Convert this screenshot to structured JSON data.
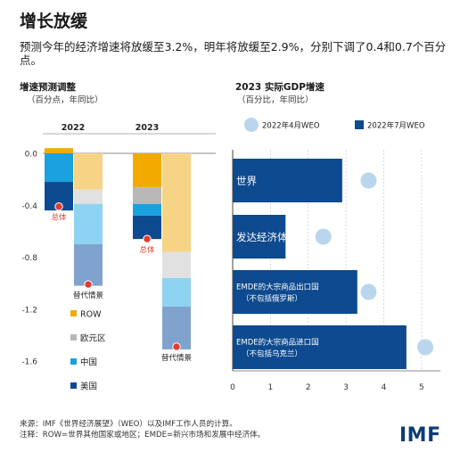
{
  "header": {
    "title": "增长放缓",
    "subtitle": "预测今年的经济增速将放缓至3.2%，明年将放缓至2.9%，分别下调了0.4和0.7个百分点。"
  },
  "left_panel": {
    "title": "增速预测调整",
    "subtitle": "（百分点，年同比）"
  },
  "right_panel": {
    "title": "2023 实际GDP增速",
    "subtitle": "（百分比，年同比）"
  },
  "footer": {
    "source": "来源：IMF《世界经济展望》（WEO）以及IMF工作人员的计算。",
    "note": "注释：ROW=世界其他国家或地区；EMDE=新兴市场和发展中经济体。",
    "logo": "IMF"
  },
  "colors": {
    "row": "#f2a900",
    "row_alt": "#f7d386",
    "euro": "#b8b8b8",
    "euro_alt": "#e1e1e1",
    "china": "#1aa1e0",
    "china_alt": "#8fd3f2",
    "us": "#0d4a8f",
    "us_alt": "#7fa3cc",
    "dot": "#e03c31",
    "bar_jul": "#0d4a8f",
    "bubble_apr": "#b9d6ee"
  },
  "chart_data": [
    {
      "type": "bar",
      "stacked": true,
      "title": "增速预测调整",
      "subtitle": "（百分点，年同比）",
      "groups": [
        "2022",
        "2023"
      ],
      "yticks": [
        "0.0",
        "-0.4",
        "-0.8",
        "-1.2",
        "-1.6"
      ],
      "ylim": [
        -1.6,
        0.0
      ],
      "legend": [
        "ROW",
        "欧元区",
        "中国",
        "美国"
      ],
      "columns": [
        {
          "group": "2022",
          "variant": "base",
          "segments": [
            {
              "series": "ROW",
              "value": 0.04
            },
            {
              "series": "欧元区",
              "value": 0.0
            },
            {
              "series": "中国",
              "value": -0.22
            },
            {
              "series": "美国",
              "value": -0.22
            }
          ],
          "dot": -0.41,
          "dot_label": "总体"
        },
        {
          "group": "2022",
          "variant": "alt",
          "segments": [
            {
              "series": "ROW",
              "value": -0.28
            },
            {
              "series": "欧元区",
              "value": -0.11
            },
            {
              "series": "中国",
              "value": -0.31
            },
            {
              "series": "美国",
              "value": -0.32
            }
          ],
          "dot": -1.01,
          "dot_label": "替代情景"
        },
        {
          "group": "2023",
          "variant": "base",
          "segments": [
            {
              "series": "ROW",
              "value": -0.26
            },
            {
              "series": "欧元区",
              "value": -0.13
            },
            {
              "series": "中国",
              "value": -0.09
            },
            {
              "series": "美国",
              "value": -0.18
            }
          ],
          "dot": -0.66,
          "dot_label": "总体"
        },
        {
          "group": "2023",
          "variant": "alt",
          "segments": [
            {
              "series": "ROW",
              "value": -0.76
            },
            {
              "series": "欧元区",
              "value": -0.2
            },
            {
              "series": "中国",
              "value": -0.22
            },
            {
              "series": "美国",
              "value": -0.33
            }
          ],
          "dot": -1.49,
          "dot_label": "替代情景"
        }
      ]
    },
    {
      "type": "bar",
      "orientation": "horizontal",
      "title": "2023 实际GDP增速",
      "subtitle": "（百分比，年同比）",
      "xlim": [
        0,
        5.5
      ],
      "xticks": [
        0,
        1,
        2,
        3,
        4,
        5
      ],
      "categories": [
        {
          "lines": [
            "世界"
          ],
          "big": true
        },
        {
          "lines": [
            "发达经济体"
          ],
          "big": true
        },
        {
          "lines": [
            "EMDE的大宗商品出口国",
            "（不包括俄罗斯）"
          ],
          "big": false
        },
        {
          "lines": [
            "EMDE的大宗商品进口国",
            "（不包括乌克兰）"
          ],
          "big": false
        }
      ],
      "series": [
        {
          "name": "2022年7月WEO",
          "marker": "bar",
          "values": [
            2.9,
            1.4,
            3.3,
            4.6
          ]
        },
        {
          "name": "2022年4月WEO",
          "marker": "bubble",
          "values": [
            3.6,
            2.4,
            3.6,
            5.1
          ]
        }
      ]
    }
  ]
}
